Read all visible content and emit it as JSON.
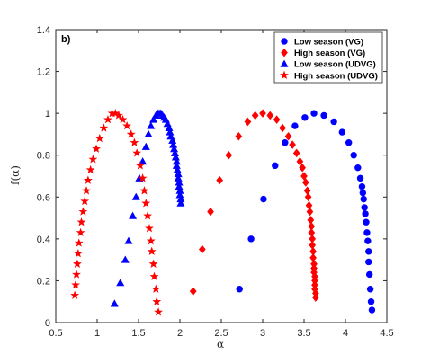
{
  "chart_data": {
    "type": "scatter",
    "panel_label": "b)",
    "xlabel": "α",
    "ylabel": "f(α)",
    "xlim": [
      0.5,
      4.5
    ],
    "ylim": [
      0,
      1.4
    ],
    "x_ticks": [
      "0.5",
      "1",
      "1.5",
      "2",
      "2.5",
      "3",
      "3.5",
      "4",
      "4.5"
    ],
    "y_ticks": [
      "0",
      "0.2",
      "0.4",
      "0.6",
      "0.8",
      "1",
      "1.2",
      "1.4"
    ],
    "grid": false,
    "legend_position": "top-right",
    "series": [
      {
        "name": "Low season (VG)",
        "marker": "circle",
        "color": "#0000ff",
        "points": [
          [
            2.72,
            0.16
          ],
          [
            2.86,
            0.4
          ],
          [
            3.01,
            0.59
          ],
          [
            3.15,
            0.75
          ],
          [
            3.27,
            0.86
          ],
          [
            3.39,
            0.94
          ],
          [
            3.51,
            0.98
          ],
          [
            3.62,
            1.0
          ],
          [
            3.74,
            0.99
          ],
          [
            3.86,
            0.96
          ],
          [
            3.96,
            0.91
          ],
          [
            4.04,
            0.86
          ],
          [
            4.1,
            0.8
          ],
          [
            4.15,
            0.74
          ],
          [
            4.18,
            0.69
          ],
          [
            4.2,
            0.65
          ],
          [
            4.21,
            0.62
          ],
          [
            4.22,
            0.59
          ],
          [
            4.23,
            0.55
          ],
          [
            4.24,
            0.52
          ],
          [
            4.25,
            0.48
          ],
          [
            4.26,
            0.43
          ],
          [
            4.27,
            0.39
          ],
          [
            4.28,
            0.34
          ],
          [
            4.28,
            0.29
          ],
          [
            4.29,
            0.23
          ],
          [
            4.3,
            0.16
          ],
          [
            4.31,
            0.1
          ],
          [
            4.32,
            0.06
          ]
        ]
      },
      {
        "name": "High season (VG)",
        "marker": "diamond",
        "color": "#ff0000",
        "points": [
          [
            2.16,
            0.15
          ],
          [
            2.27,
            0.35
          ],
          [
            2.37,
            0.53
          ],
          [
            2.48,
            0.68
          ],
          [
            2.59,
            0.8
          ],
          [
            2.71,
            0.89
          ],
          [
            2.82,
            0.96
          ],
          [
            2.91,
            0.99
          ],
          [
            3.0,
            1.0
          ],
          [
            3.09,
            0.99
          ],
          [
            3.17,
            0.97
          ],
          [
            3.24,
            0.93
          ],
          [
            3.31,
            0.89
          ],
          [
            3.36,
            0.85
          ],
          [
            3.41,
            0.81
          ],
          [
            3.45,
            0.77
          ],
          [
            3.48,
            0.74
          ],
          [
            3.5,
            0.7
          ],
          [
            3.52,
            0.67
          ],
          [
            3.54,
            0.63
          ],
          [
            3.55,
            0.6
          ],
          [
            3.56,
            0.56
          ],
          [
            3.57,
            0.53
          ],
          [
            3.58,
            0.49
          ],
          [
            3.59,
            0.46
          ],
          [
            3.59,
            0.43
          ],
          [
            3.6,
            0.4
          ],
          [
            3.6,
            0.37
          ],
          [
            3.61,
            0.34
          ],
          [
            3.61,
            0.31
          ],
          [
            3.62,
            0.28
          ],
          [
            3.62,
            0.26
          ],
          [
            3.62,
            0.24
          ],
          [
            3.63,
            0.22
          ],
          [
            3.63,
            0.2
          ],
          [
            3.63,
            0.18
          ],
          [
            3.63,
            0.16
          ],
          [
            3.64,
            0.14
          ],
          [
            3.64,
            0.12
          ]
        ]
      },
      {
        "name": "Low season (UDVG)",
        "marker": "triangle",
        "color": "#0000ff",
        "points": [
          [
            1.21,
            0.09
          ],
          [
            1.28,
            0.19
          ],
          [
            1.34,
            0.3
          ],
          [
            1.38,
            0.39
          ],
          [
            1.43,
            0.51
          ],
          [
            1.47,
            0.6
          ],
          [
            1.51,
            0.69
          ],
          [
            1.55,
            0.77
          ],
          [
            1.59,
            0.84
          ],
          [
            1.62,
            0.9
          ],
          [
            1.65,
            0.94
          ],
          [
            1.68,
            0.97
          ],
          [
            1.71,
            0.99
          ],
          [
            1.73,
            1.0
          ],
          [
            1.75,
            1.0
          ],
          [
            1.77,
            1.0
          ],
          [
            1.79,
            0.99
          ],
          [
            1.81,
            0.98
          ],
          [
            1.83,
            0.97
          ],
          [
            1.85,
            0.95
          ],
          [
            1.87,
            0.93
          ],
          [
            1.88,
            0.91
          ],
          [
            1.89,
            0.89
          ],
          [
            1.91,
            0.87
          ],
          [
            1.92,
            0.85
          ],
          [
            1.93,
            0.83
          ],
          [
            1.94,
            0.81
          ],
          [
            1.95,
            0.79
          ],
          [
            1.96,
            0.77
          ],
          [
            1.96,
            0.75
          ],
          [
            1.97,
            0.73
          ],
          [
            1.98,
            0.71
          ],
          [
            1.98,
            0.69
          ],
          [
            1.99,
            0.67
          ],
          [
            1.99,
            0.65
          ],
          [
            2.0,
            0.63
          ],
          [
            2.0,
            0.61
          ],
          [
            2.01,
            0.59
          ],
          [
            2.01,
            0.57
          ]
        ]
      },
      {
        "name": "High season (UDVG)",
        "marker": "star",
        "color": "#ff0000",
        "points": [
          [
            0.73,
            0.13
          ],
          [
            0.74,
            0.18
          ],
          [
            0.75,
            0.23
          ],
          [
            0.76,
            0.28
          ],
          [
            0.77,
            0.33
          ],
          [
            0.78,
            0.38
          ],
          [
            0.8,
            0.43
          ],
          [
            0.81,
            0.48
          ],
          [
            0.83,
            0.53
          ],
          [
            0.85,
            0.58
          ],
          [
            0.87,
            0.63
          ],
          [
            0.89,
            0.68
          ],
          [
            0.92,
            0.73
          ],
          [
            0.95,
            0.78
          ],
          [
            0.99,
            0.83
          ],
          [
            1.03,
            0.88
          ],
          [
            1.08,
            0.93
          ],
          [
            1.13,
            0.97
          ],
          [
            1.18,
            1.0
          ],
          [
            1.22,
            1.0
          ],
          [
            1.26,
            0.99
          ],
          [
            1.31,
            0.97
          ],
          [
            1.36,
            0.94
          ],
          [
            1.41,
            0.9
          ],
          [
            1.45,
            0.86
          ],
          [
            1.48,
            0.81
          ],
          [
            1.52,
            0.75
          ],
          [
            1.55,
            0.69
          ],
          [
            1.57,
            0.63
          ],
          [
            1.59,
            0.57
          ],
          [
            1.61,
            0.51
          ],
          [
            1.63,
            0.45
          ],
          [
            1.65,
            0.39
          ],
          [
            1.66,
            0.34
          ],
          [
            1.68,
            0.28
          ],
          [
            1.69,
            0.22
          ],
          [
            1.71,
            0.16
          ],
          [
            1.72,
            0.1
          ],
          [
            1.74,
            0.05
          ]
        ]
      }
    ]
  }
}
